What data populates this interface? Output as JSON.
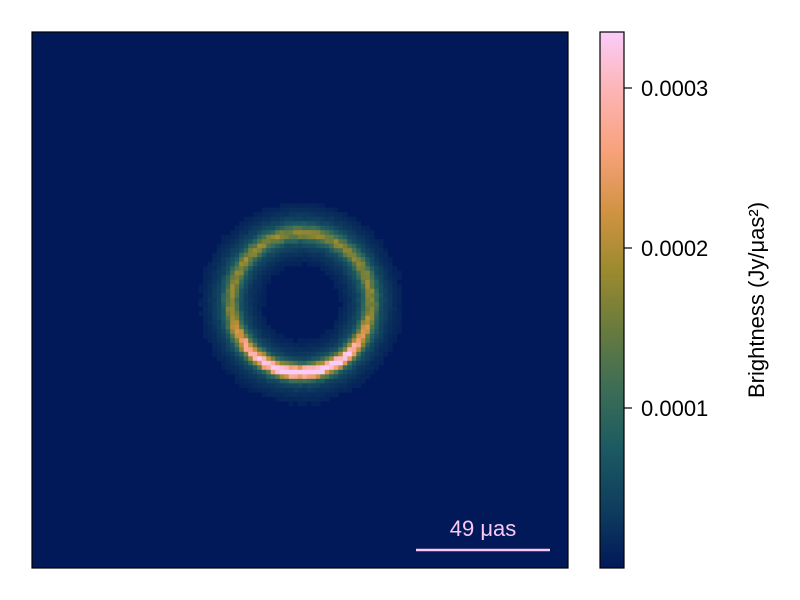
{
  "chart_data": {
    "type": "heatmap",
    "title": "",
    "description_values": {
      "ring_radius_uas": 26,
      "ring_center_uas": [
        0,
        0
      ],
      "field_of_view_uas": 200,
      "background_level": 5e-06,
      "ring_peak_level": 0.000335
    },
    "colorbar": {
      "label": "Brightness (Jy/μas²)",
      "range": [
        0,
        0.000335
      ],
      "ticks": [
        0.0001,
        0.0002,
        0.0003
      ],
      "tick_labels": [
        "0.0001",
        "0.0002",
        "0.0003"
      ],
      "colormap": "batlow"
    },
    "colormap_stops": [
      "#011959",
      "#0f3d5e",
      "#1c5a62",
      "#3c6d56",
      "#687b3e",
      "#9c8a2f",
      "#d29343",
      "#f8a17b",
      "#fdb4b4",
      "#faccfa"
    ],
    "scale_bar": {
      "label": "49 μas",
      "color": "#fac8f0"
    },
    "frame_color": "#000000",
    "grid": false
  }
}
